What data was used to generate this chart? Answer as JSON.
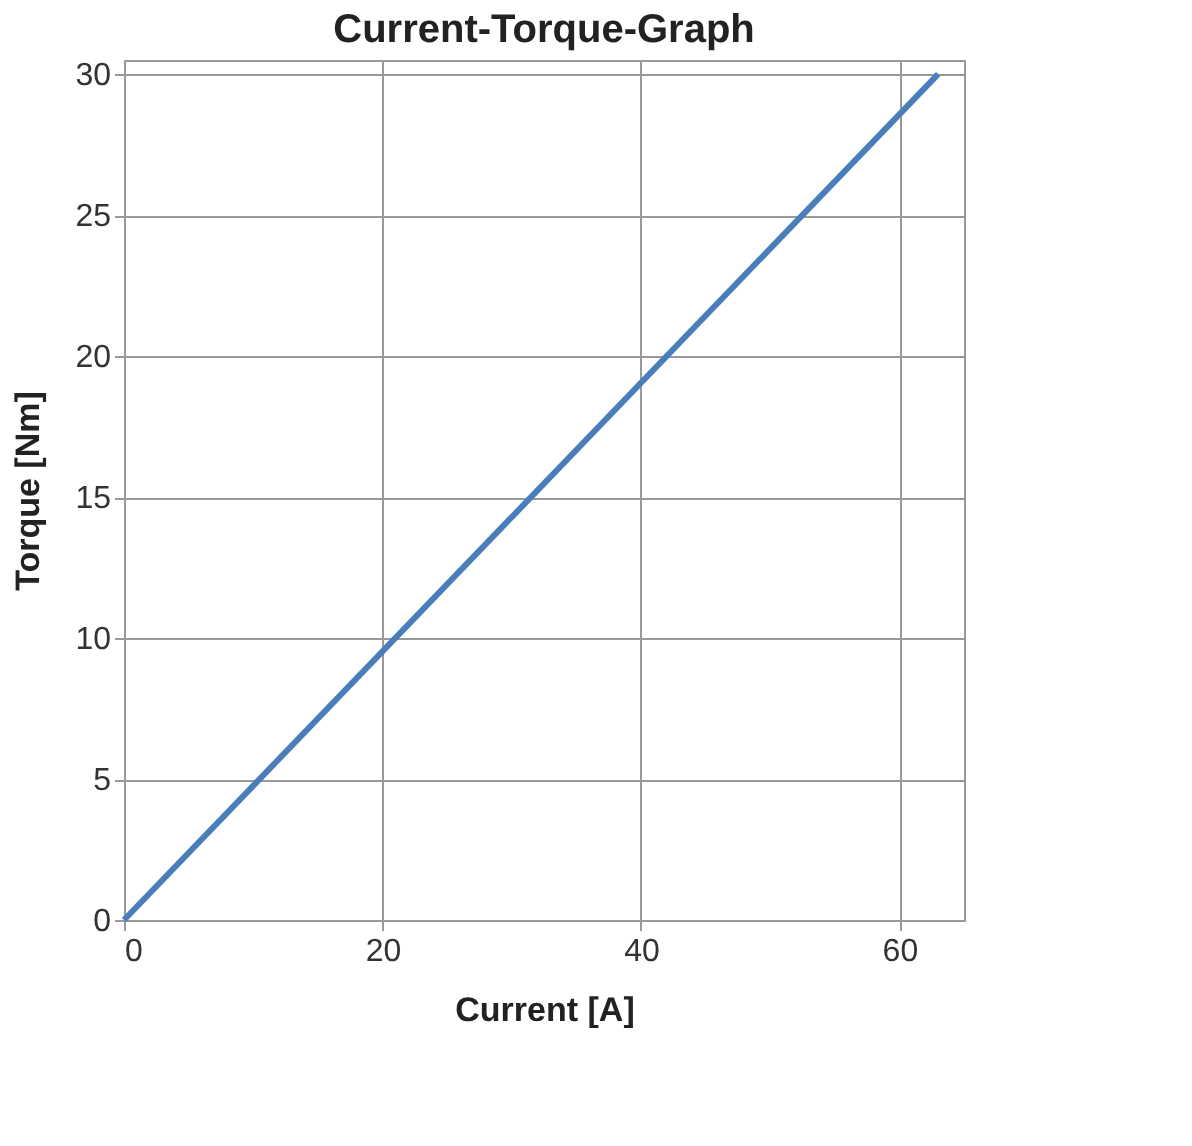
{
  "chart_data": {
    "type": "line",
    "title": "Current-Torque-Graph",
    "xlabel": "Current [A]",
    "ylabel": "Torque [Nm]",
    "x": [
      0,
      63
    ],
    "series": [
      {
        "color": "#4a7ebb",
        "values": [
          0,
          30
        ]
      }
    ],
    "xlim": [
      0,
      65
    ],
    "xticks": [
      0,
      20,
      40,
      60
    ],
    "ylim": [
      0,
      30.5
    ],
    "yticks": [
      0,
      5,
      10,
      15,
      20,
      25,
      30
    ],
    "grid": true,
    "marker": "none",
    "line_style": "solid"
  }
}
